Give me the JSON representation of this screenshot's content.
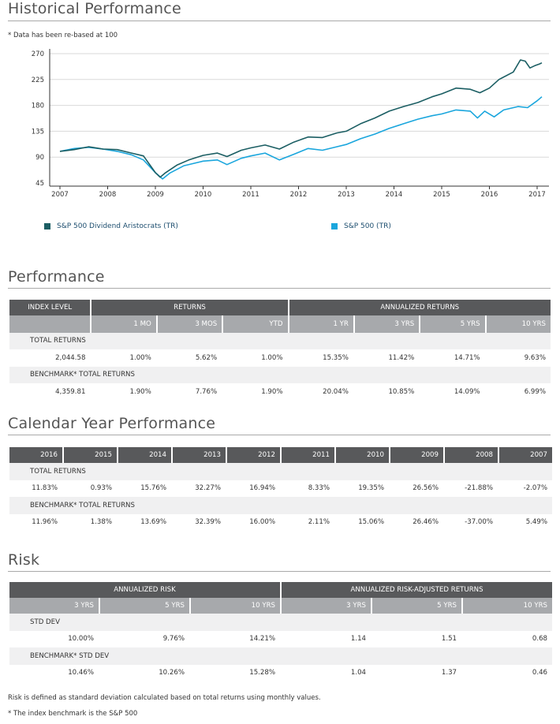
{
  "sections": {
    "historical": "Historical Performance",
    "performance": "Performance",
    "calendar": "Calendar Year Performance",
    "risk": "Risk"
  },
  "chart_note": "* Data has been re-based at 100",
  "chart_data": {
    "type": "line",
    "title": "Historical Performance",
    "note": "* Data has been re-based at 100",
    "x_ticks": [
      "2007",
      "2008",
      "2009",
      "2010",
      "2011",
      "2012",
      "2013",
      "2014",
      "2015",
      "2016",
      "2017"
    ],
    "y_ticks": [
      45,
      90,
      135,
      180,
      225,
      270
    ],
    "ylim": [
      45,
      270
    ],
    "xlim": [
      2007.0,
      2017.0
    ],
    "series": [
      {
        "name": "S&P 500 Dividend Aristocrats (TR)",
        "color": "#1b5e63",
        "points": [
          [
            2007.0,
            100
          ],
          [
            2007.3,
            103
          ],
          [
            2007.6,
            108
          ],
          [
            2007.9,
            104
          ],
          [
            2008.2,
            103
          ],
          [
            2008.5,
            97
          ],
          [
            2008.75,
            92
          ],
          [
            2009.0,
            63
          ],
          [
            2009.1,
            55
          ],
          [
            2009.2,
            62
          ],
          [
            2009.45,
            76
          ],
          [
            2009.7,
            85
          ],
          [
            2010.0,
            93
          ],
          [
            2010.3,
            97
          ],
          [
            2010.5,
            91
          ],
          [
            2010.8,
            102
          ],
          [
            2011.0,
            106
          ],
          [
            2011.3,
            111
          ],
          [
            2011.6,
            104
          ],
          [
            2011.9,
            116
          ],
          [
            2012.2,
            125
          ],
          [
            2012.5,
            124
          ],
          [
            2012.8,
            132
          ],
          [
            2013.0,
            135
          ],
          [
            2013.3,
            148
          ],
          [
            2013.6,
            158
          ],
          [
            2013.9,
            170
          ],
          [
            2014.2,
            178
          ],
          [
            2014.5,
            185
          ],
          [
            2014.8,
            195
          ],
          [
            2015.0,
            200
          ],
          [
            2015.3,
            210
          ],
          [
            2015.6,
            208
          ],
          [
            2015.8,
            202
          ],
          [
            2016.0,
            210
          ],
          [
            2016.2,
            225
          ],
          [
            2016.5,
            238
          ],
          [
            2016.65,
            259
          ],
          [
            2016.75,
            257
          ],
          [
            2016.85,
            245
          ],
          [
            2016.95,
            249
          ],
          [
            2017.05,
            252
          ],
          [
            2017.1,
            254
          ]
        ]
      },
      {
        "name": "S&P 500 (TR)",
        "color": "#1aa6dd",
        "points": [
          [
            2007.0,
            100
          ],
          [
            2007.3,
            105
          ],
          [
            2007.6,
            107
          ],
          [
            2007.9,
            104
          ],
          [
            2008.2,
            100
          ],
          [
            2008.5,
            94
          ],
          [
            2008.75,
            85
          ],
          [
            2009.0,
            63
          ],
          [
            2009.15,
            52
          ],
          [
            2009.3,
            62
          ],
          [
            2009.6,
            75
          ],
          [
            2010.0,
            83
          ],
          [
            2010.3,
            85
          ],
          [
            2010.5,
            77
          ],
          [
            2010.8,
            88
          ],
          [
            2011.0,
            92
          ],
          [
            2011.3,
            97
          ],
          [
            2011.6,
            85
          ],
          [
            2011.9,
            95
          ],
          [
            2012.2,
            105
          ],
          [
            2012.5,
            102
          ],
          [
            2012.8,
            108
          ],
          [
            2013.0,
            112
          ],
          [
            2013.3,
            122
          ],
          [
            2013.6,
            130
          ],
          [
            2013.9,
            140
          ],
          [
            2014.2,
            148
          ],
          [
            2014.5,
            156
          ],
          [
            2014.8,
            162
          ],
          [
            2015.0,
            165
          ],
          [
            2015.3,
            172
          ],
          [
            2015.6,
            170
          ],
          [
            2015.75,
            158
          ],
          [
            2015.9,
            170
          ],
          [
            2016.1,
            160
          ],
          [
            2016.3,
            172
          ],
          [
            2016.6,
            178
          ],
          [
            2016.8,
            176
          ],
          [
            2017.0,
            188
          ],
          [
            2017.1,
            195
          ]
        ]
      }
    ]
  },
  "legend": {
    "a": "S&P 500 Dividend Aristocrats (TR)",
    "b": "S&P 500 (TR)",
    "a_color": "#1b5e63",
    "b_color": "#1aa6dd"
  },
  "performance": {
    "headers": {
      "index_level": "INDEX LEVEL",
      "returns": "RETURNS",
      "annualized": "ANNUALIZED RETURNS"
    },
    "sub": [
      "1 MO",
      "3 MOS",
      "YTD",
      "1 YR",
      "3 YRS",
      "5 YRS",
      "10 YRS"
    ],
    "total_label": "TOTAL RETURNS",
    "total": [
      "2,044.58",
      "1.00%",
      "5.62%",
      "1.00%",
      "15.35%",
      "11.42%",
      "14.71%",
      "9.63%"
    ],
    "bench_label": "BENCHMARK* TOTAL RETURNS",
    "bench": [
      "4,359.81",
      "1.90%",
      "7.76%",
      "1.90%",
      "20.04%",
      "10.85%",
      "14.09%",
      "6.99%"
    ]
  },
  "calendar": {
    "years": [
      "2016",
      "2015",
      "2014",
      "2013",
      "2012",
      "2011",
      "2010",
      "2009",
      "2008",
      "2007"
    ],
    "total_label": "TOTAL RETURNS",
    "total": [
      "11.83%",
      "0.93%",
      "15.76%",
      "32.27%",
      "16.94%",
      "8.33%",
      "19.35%",
      "26.56%",
      "-21.88%",
      "-2.07%"
    ],
    "bench_label": "BENCHMARK* TOTAL RETURNS",
    "bench": [
      "11.96%",
      "1.38%",
      "13.69%",
      "32.39%",
      "16.00%",
      "2.11%",
      "15.06%",
      "26.46%",
      "-37.00%",
      "5.49%"
    ]
  },
  "risk": {
    "headers": {
      "ann_risk": "ANNUALIZED RISK",
      "ann_adj": "ANNUALIZED RISK-ADJUSTED RETURNS"
    },
    "sub": [
      "3 YRS",
      "5 YRS",
      "10 YRS",
      "3 YRS",
      "5 YRS",
      "10 YRS"
    ],
    "std_label": "STD DEV",
    "std": [
      "10.00%",
      "9.76%",
      "14.21%",
      "1.14",
      "1.51",
      "0.68"
    ],
    "bench_label": "BENCHMARK* STD DEV",
    "bench": [
      "10.46%",
      "10.26%",
      "15.28%",
      "1.04",
      "1.37",
      "0.46"
    ],
    "note1": "Risk is defined as standard deviation calculated based on total returns using monthly values.",
    "note2": "* The index benchmark is the  S&P 500"
  }
}
